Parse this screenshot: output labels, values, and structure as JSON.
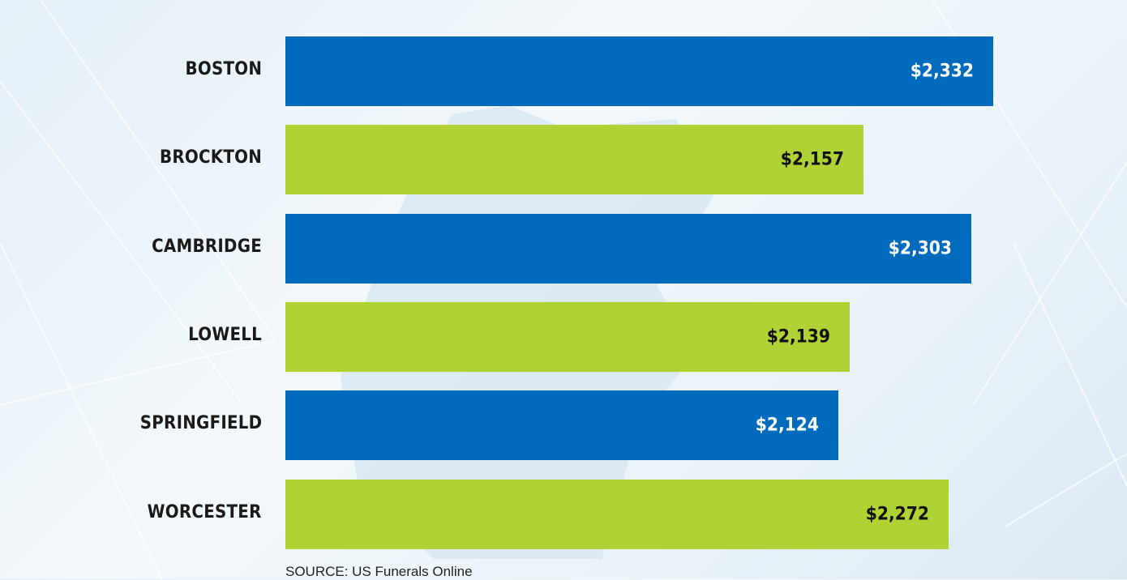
{
  "chart_data": {
    "type": "bar",
    "orientation": "horizontal",
    "categories": [
      "BOSTON",
      "BROCKTON",
      "CAMBRIDGE",
      "LOWELL",
      "SPRINGFIELD",
      "WORCESTER"
    ],
    "values": [
      2332,
      2157,
      2303,
      2139,
      2124,
      2272
    ],
    "data_labels": [
      "$2,332",
      "$2,157",
      "$2,303",
      "$2,139",
      "$2,124",
      "$2,272"
    ],
    "bar_colors": [
      "#006bbd",
      "#b1d235",
      "#006bbd",
      "#b1d235",
      "#006bbd",
      "#b1d235"
    ],
    "label_colors": [
      "#ffffff",
      "#111111",
      "#ffffff",
      "#111111",
      "#ffffff",
      "#111111"
    ],
    "grid": false,
    "source": "SOURCE: US Funerals Online"
  }
}
